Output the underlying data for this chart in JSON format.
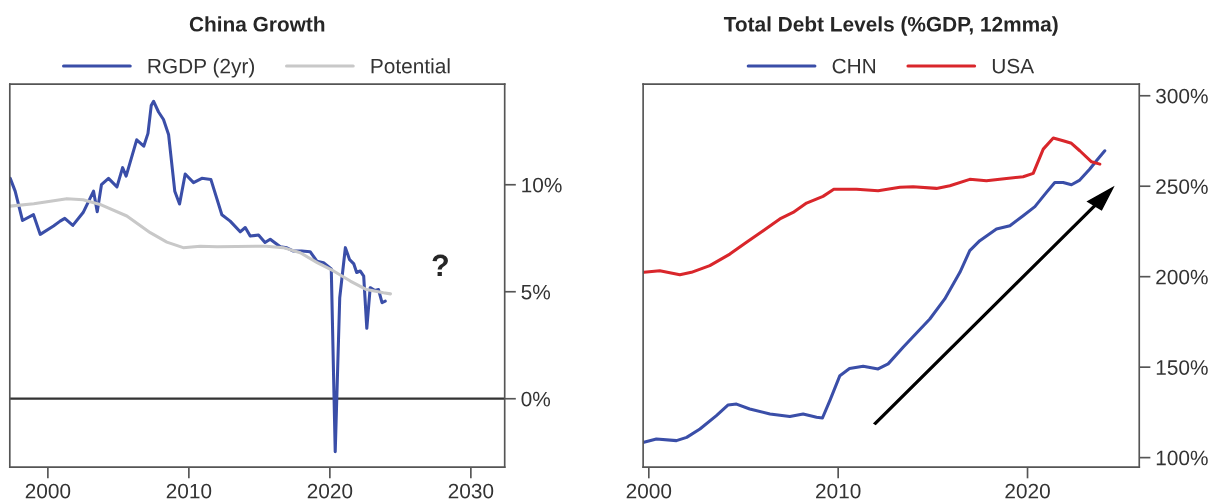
{
  "chart_data": [
    {
      "type": "line",
      "title": "China Growth",
      "legend": "top",
      "grid": false,
      "xlim": [
        1997.3,
        2032.4
      ],
      "xticks": [
        2000,
        2010,
        2020,
        2030
      ],
      "ylim": [
        -3.2,
        14.7
      ],
      "yticks": [
        {
          "value": 0,
          "label": "0%"
        },
        {
          "value": 5,
          "label": "5%"
        },
        {
          "value": 10,
          "label": "10%"
        }
      ],
      "ref_lines": [
        {
          "axis": "y",
          "value": 0,
          "color": "#333333"
        }
      ],
      "annotations": [
        "?"
      ],
      "series": [
        {
          "name": "RGDP (2yr)",
          "color": "#3a4ea8",
          "x": [
            1997.33,
            1997.68,
            1998.2,
            1998.98,
            1999.46,
            2000.4,
            2000.87,
            2001.2,
            2001.77,
            2002.5,
            2003.24,
            2003.5,
            2003.8,
            2004.3,
            2004.9,
            2005.3,
            2005.55,
            2006.3,
            2006.8,
            2007.1,
            2007.33,
            2007.5,
            2007.85,
            2008.2,
            2008.56,
            2009.0,
            2009.34,
            2009.74,
            2010.33,
            2010.92,
            2011.56,
            2012.34,
            2012.93,
            2013.64,
            2014.0,
            2014.35,
            2014.94,
            2015.4,
            2015.77,
            2016.48,
            2016.95,
            2017.42,
            2018.0,
            2018.6,
            2019.08,
            2019.55,
            2020.1,
            2020.38,
            2020.7,
            2021.1,
            2021.4,
            2021.7,
            2021.9,
            2022.15,
            2022.4,
            2022.62,
            2022.86,
            2023.2,
            2023.45,
            2023.7,
            2023.93
          ],
          "values": [
            10.3,
            9.7,
            8.33,
            8.6,
            7.68,
            8.07,
            8.3,
            8.43,
            8.1,
            8.7,
            9.7,
            8.74,
            10.0,
            10.3,
            9.9,
            10.8,
            10.4,
            12.1,
            11.8,
            12.4,
            13.7,
            13.9,
            13.4,
            13.05,
            12.35,
            9.7,
            9.1,
            10.5,
            10.1,
            10.3,
            10.25,
            8.6,
            8.3,
            7.8,
            8.0,
            7.6,
            7.65,
            7.3,
            7.45,
            7.1,
            7.05,
            6.9,
            6.9,
            6.87,
            6.43,
            6.36,
            6.07,
            -2.48,
            4.72,
            7.06,
            6.5,
            6.3,
            5.9,
            5.97,
            5.73,
            3.29,
            5.19,
            5.06,
            5.1,
            4.49,
            4.56
          ]
        },
        {
          "name": "Potential",
          "color": "#c8c8c8",
          "x": [
            1997.33,
            1999.0,
            2001.35,
            2002.5,
            2003.7,
            2005.6,
            2007.26,
            2008.44,
            2009.6,
            2010.8,
            2012.0,
            2015.5,
            2016.7,
            2017.9,
            2019.1,
            2020.26,
            2021.45,
            2022.6,
            2023.8,
            2024.3
          ],
          "values": [
            9.0,
            9.11,
            9.35,
            9.3,
            9.08,
            8.54,
            7.76,
            7.32,
            7.06,
            7.13,
            7.1,
            7.13,
            7.06,
            6.82,
            6.36,
            5.97,
            5.5,
            5.1,
            4.95,
            4.9
          ]
        }
      ]
    },
    {
      "type": "line",
      "title": "Total Debt Levels (%GDP, 12mma)",
      "legend": "top",
      "grid": false,
      "xlim": [
        1999.7,
        2025.9
      ],
      "xticks": [
        2000,
        2010,
        2020
      ],
      "ylim": [
        94.7,
        306.4
      ],
      "yticks": [
        {
          "value": 100,
          "label": "100%"
        },
        {
          "value": 150,
          "label": "150%"
        },
        {
          "value": 200,
          "label": "200%"
        },
        {
          "value": 250,
          "label": "250%"
        },
        {
          "value": 300,
          "label": "300%"
        }
      ],
      "series": [
        {
          "name": "CHN",
          "color": "#3a4ea8",
          "x": [
            1999.74,
            2000.4,
            2001.46,
            2002.0,
            2002.7,
            2003.57,
            2004.19,
            2004.63,
            2005.33,
            2006.4,
            2007.45,
            2008.15,
            2008.86,
            2009.17,
            2009.56,
            2010.09,
            2010.6,
            2011.32,
            2012.11,
            2012.64,
            2013.43,
            2014.14,
            2014.84,
            2015.63,
            2016.43,
            2016.95,
            2017.48,
            2018.36,
            2019.07,
            2019.77,
            2020.39,
            2021.0,
            2021.44,
            2021.88,
            2022.32,
            2022.76,
            2023.29,
            2023.64,
            2024.08
          ],
          "values": [
            108.5,
            110.3,
            109.4,
            111.2,
            115.8,
            123.2,
            129.1,
            129.6,
            126.9,
            124.1,
            122.7,
            124.1,
            122.3,
            121.9,
            131.5,
            145.3,
            149.2,
            150.5,
            149.0,
            151.8,
            161.0,
            168.9,
            176.6,
            187.7,
            202.4,
            214.4,
            219.9,
            226.3,
            228.2,
            233.7,
            238.7,
            246.6,
            252.1,
            252.1,
            250.8,
            253.4,
            259.5,
            264.1,
            269.6
          ]
        },
        {
          "name": "USA",
          "color": "#d9262b",
          "x": [
            1999.74,
            2000.58,
            2001.64,
            2002.25,
            2003.22,
            2004.28,
            2005.16,
            2006.04,
            2006.92,
            2007.62,
            2008.33,
            2009.2,
            2009.77,
            2010.97,
            2012.11,
            2013.26,
            2013.96,
            2015.19,
            2015.9,
            2016.95,
            2017.83,
            2018.89,
            2019.77,
            2020.3,
            2020.83,
            2021.36,
            2021.88,
            2022.32,
            2022.76,
            2023.38,
            2023.82
          ],
          "values": [
            202.4,
            203.3,
            201.1,
            202.4,
            206.1,
            212.5,
            219.0,
            225.4,
            231.9,
            235.5,
            240.7,
            244.4,
            248.3,
            248.3,
            247.5,
            249.4,
            249.7,
            248.8,
            250.3,
            253.8,
            253.0,
            254.3,
            255.2,
            257.1,
            270.5,
            276.6,
            275.1,
            273.7,
            269.6,
            263.5,
            262.2
          ]
        }
      ]
    }
  ]
}
